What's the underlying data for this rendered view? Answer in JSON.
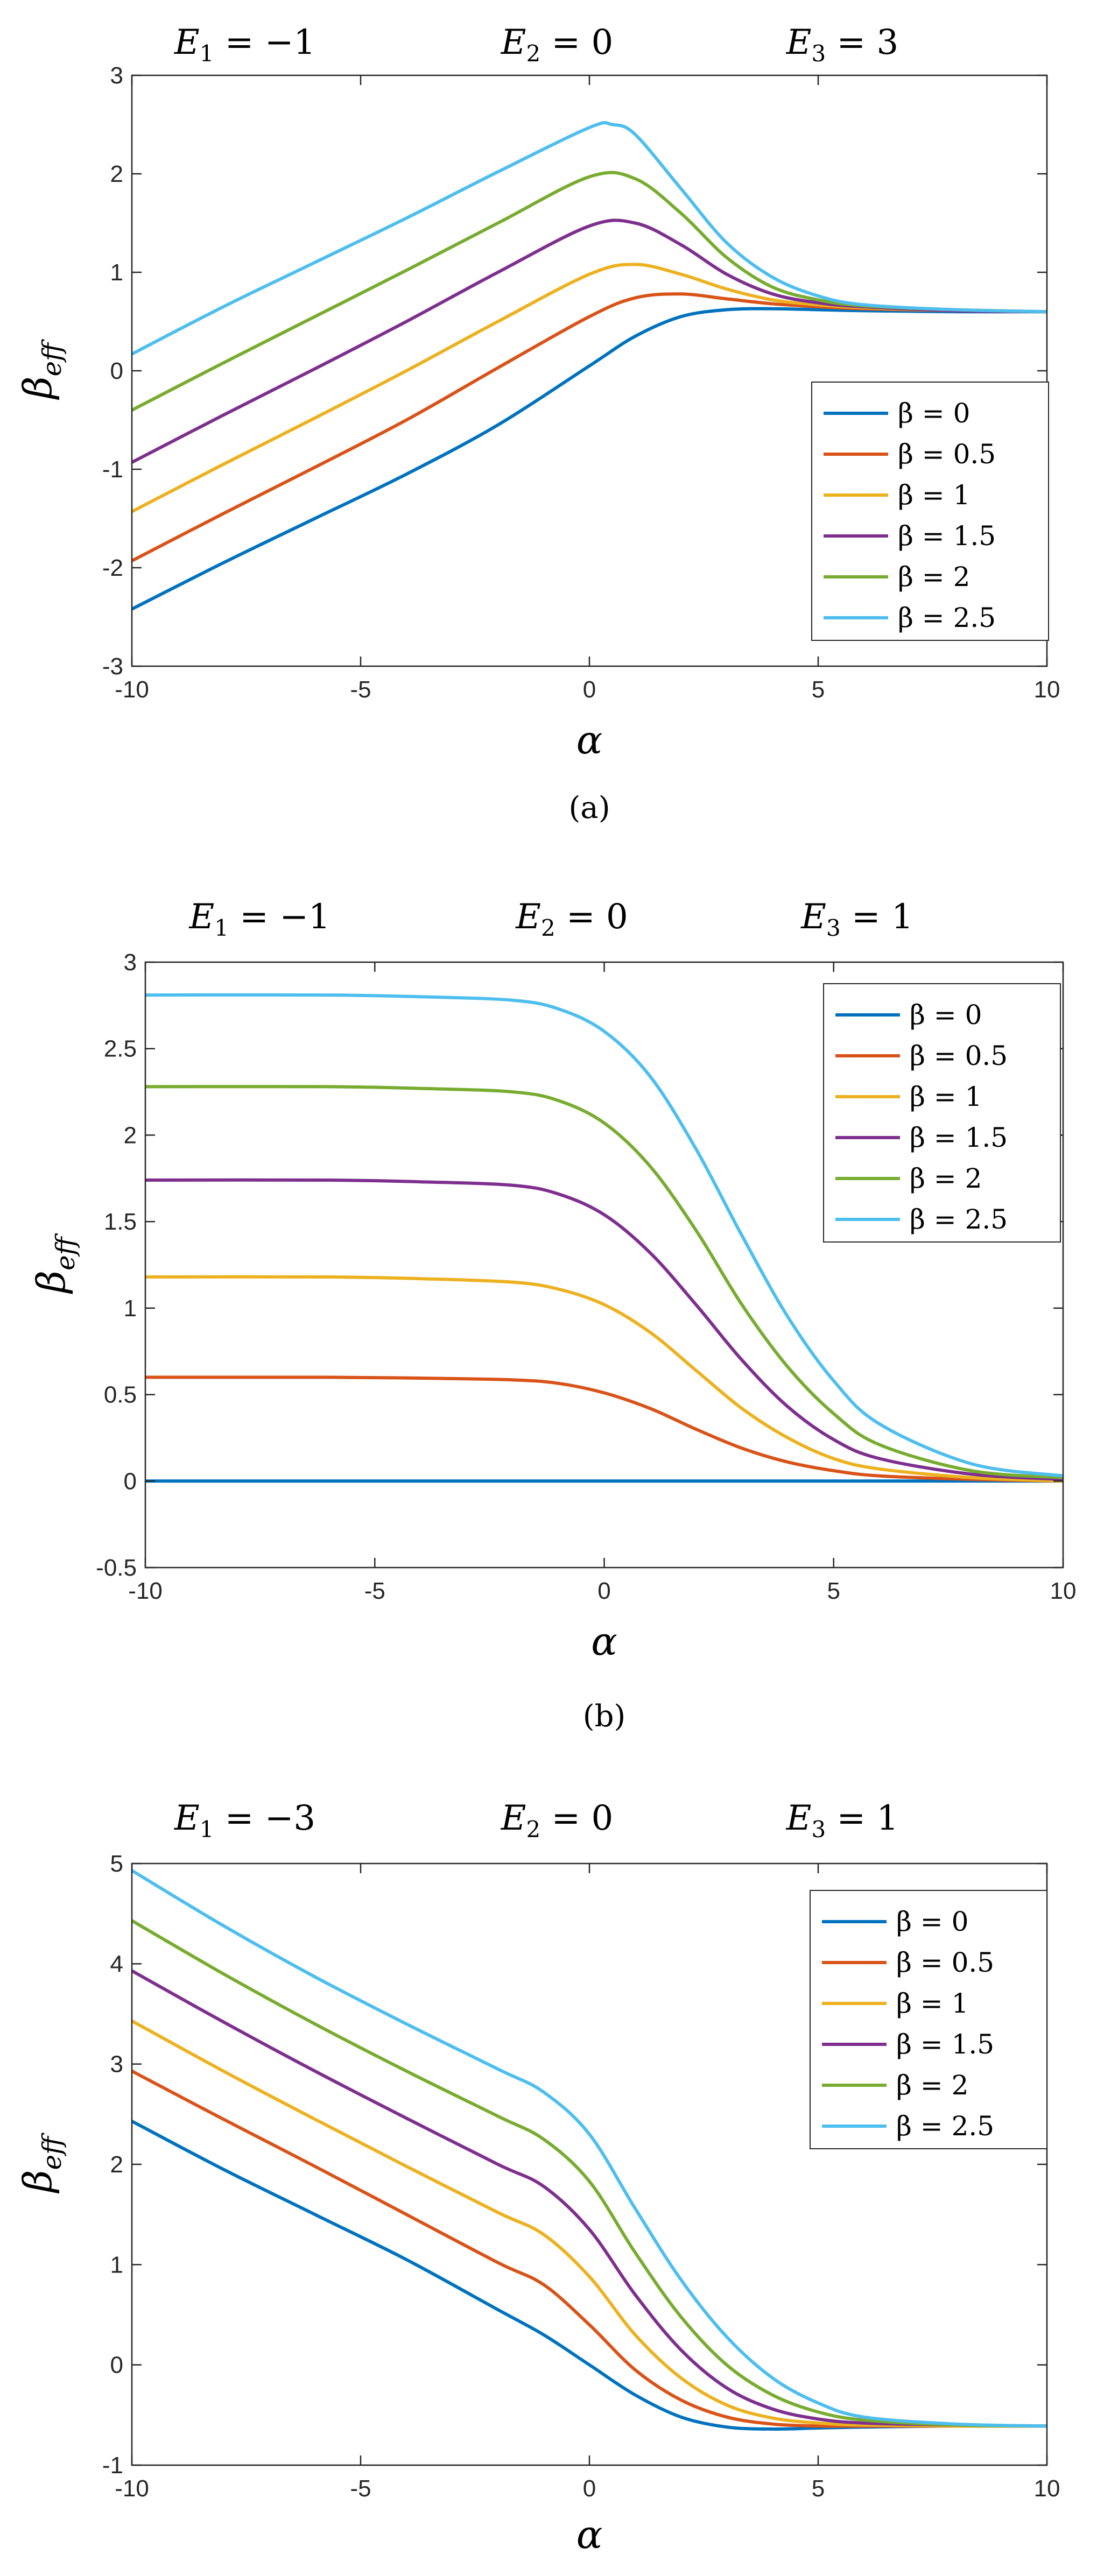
{
  "colors": {
    "series": [
      "#0072BD",
      "#D95319",
      "#EDB120",
      "#7E2F8E",
      "#77AC30",
      "#4DBEEE"
    ],
    "axis": "#262626",
    "legend_border": "#262626",
    "background": "#ffffff"
  },
  "chart_data": [
    {
      "type": "line",
      "panel_label": "(a)",
      "panel_letter": "a",
      "title_parts": {
        "e1_var": "E",
        "e1_sub": "1",
        "e1_eq": " = −1",
        "e2_var": "E",
        "e2_sub": "2",
        "e2_eq": " = 0",
        "e3_var": "E",
        "e3_sub": "3",
        "e3_eq": " = 3"
      },
      "title": "E1 = −1   E2 = 0   E3 = 3",
      "xlabel": "α",
      "ylabel_main": "β",
      "ylabel_sub": "eff",
      "xlim": [
        -10,
        10
      ],
      "ylim": [
        -3,
        3
      ],
      "xticks": [
        -10,
        -5,
        0,
        5,
        10
      ],
      "yticks": [
        -3,
        -2,
        -1,
        0,
        1,
        2,
        3
      ],
      "xtick_labels": [
        "-10",
        "-5",
        "0",
        "5",
        "10"
      ],
      "ytick_labels": [
        "-3",
        "-2",
        "-1",
        "0",
        "1",
        "2",
        "3"
      ],
      "legend_position": "lower-right",
      "grid": false,
      "series": [
        {
          "name": "β = 0",
          "x": [
            -10,
            -8,
            -6,
            -4,
            -2,
            0,
            1,
            2,
            3,
            4,
            5,
            6,
            8,
            10
          ],
          "y": [
            -2.42,
            -1.95,
            -1.5,
            -1.05,
            -0.55,
            0.05,
            0.35,
            0.55,
            0.62,
            0.63,
            0.62,
            0.61,
            0.6,
            0.6
          ]
        },
        {
          "name": "β = 0.5",
          "x": [
            -10,
            -8,
            -6,
            -4,
            -2,
            0,
            1,
            2,
            3,
            4,
            5,
            6,
            8,
            10
          ],
          "y": [
            -1.93,
            -1.45,
            -0.98,
            -0.5,
            0.03,
            0.55,
            0.74,
            0.78,
            0.73,
            0.68,
            0.65,
            0.63,
            0.61,
            0.6
          ]
        },
        {
          "name": "β = 1",
          "x": [
            -10,
            -8,
            -6,
            -4,
            -2,
            0,
            1,
            2,
            3,
            4,
            5,
            6,
            8,
            10
          ],
          "y": [
            -1.43,
            -0.95,
            -0.48,
            0.0,
            0.5,
            0.98,
            1.08,
            0.98,
            0.83,
            0.72,
            0.67,
            0.64,
            0.61,
            0.6
          ]
        },
        {
          "name": "β = 1.5",
          "x": [
            -10,
            -8,
            -6,
            -4,
            -2,
            0,
            1,
            2,
            3,
            4,
            5,
            6,
            8,
            10
          ],
          "y": [
            -0.93,
            -0.45,
            0.02,
            0.5,
            1.0,
            1.47,
            1.5,
            1.28,
            0.98,
            0.78,
            0.69,
            0.65,
            0.61,
            0.6
          ]
        },
        {
          "name": "β = 2",
          "x": [
            -10,
            -8,
            -6,
            -4,
            -2,
            0,
            1,
            2,
            3,
            4,
            5,
            6,
            8,
            10
          ],
          "y": [
            -0.4,
            0.08,
            0.55,
            1.02,
            1.5,
            1.97,
            1.95,
            1.6,
            1.15,
            0.85,
            0.72,
            0.66,
            0.62,
            0.6
          ]
        },
        {
          "name": "β = 2.5",
          "x": [
            -10,
            -8,
            -6,
            -4,
            -2,
            0,
            0.5,
            1,
            2,
            3,
            4,
            5,
            6,
            8,
            10
          ],
          "y": [
            0.17,
            0.65,
            1.1,
            1.55,
            2.02,
            2.47,
            2.5,
            2.4,
            1.85,
            1.3,
            0.95,
            0.76,
            0.67,
            0.62,
            0.6
          ]
        }
      ]
    },
    {
      "type": "line",
      "panel_label": "(b)",
      "panel_letter": "b",
      "title_parts": {
        "e1_var": "E",
        "e1_sub": "1",
        "e1_eq": " = −1",
        "e2_var": "E",
        "e2_sub": "2",
        "e2_eq": " = 0",
        "e3_var": "E",
        "e3_sub": "3",
        "e3_eq": " = 1"
      },
      "title": "E1 = −1   E2 = 0   E3 = 1",
      "xlabel": "α",
      "ylabel_main": "β",
      "ylabel_sub": "eff",
      "xlim": [
        -10,
        10
      ],
      "ylim": [
        -0.5,
        3
      ],
      "xticks": [
        -10,
        -5,
        0,
        5,
        10
      ],
      "yticks": [
        -0.5,
        0,
        0.5,
        1,
        1.5,
        2,
        2.5,
        3
      ],
      "xtick_labels": [
        "-10",
        "-5",
        "0",
        "5",
        "10"
      ],
      "ytick_labels": [
        "-0.5",
        "0",
        "0.5",
        "1",
        "1.5",
        "2",
        "2.5",
        "3"
      ],
      "legend_position": "top-right",
      "grid": false,
      "series": [
        {
          "name": "β = 0",
          "x": [
            -10,
            10
          ],
          "y": [
            0,
            0
          ]
        },
        {
          "name": "β = 0.5",
          "x": [
            -10,
            -6,
            -4,
            -2,
            -1,
            0,
            1,
            2,
            3,
            4,
            5,
            6,
            8,
            10
          ],
          "y": [
            0.6,
            0.6,
            0.595,
            0.585,
            0.565,
            0.51,
            0.42,
            0.3,
            0.19,
            0.11,
            0.06,
            0.03,
            0.01,
            0.0
          ]
        },
        {
          "name": "β = 1",
          "x": [
            -10,
            -6,
            -4,
            -2,
            -1,
            0,
            1,
            2,
            3,
            4,
            5,
            6,
            8,
            10
          ],
          "y": [
            1.18,
            1.18,
            1.17,
            1.15,
            1.11,
            1.02,
            0.86,
            0.64,
            0.42,
            0.25,
            0.13,
            0.07,
            0.02,
            0.0
          ]
        },
        {
          "name": "β = 1.5",
          "x": [
            -10,
            -6,
            -4,
            -2,
            -1,
            0,
            1,
            2,
            3,
            4,
            5,
            6,
            8,
            10
          ],
          "y": [
            1.74,
            1.74,
            1.73,
            1.71,
            1.66,
            1.54,
            1.32,
            1.02,
            0.7,
            0.43,
            0.24,
            0.13,
            0.04,
            0.01
          ]
        },
        {
          "name": "β = 2",
          "x": [
            -10,
            -6,
            -4,
            -2,
            -1,
            0,
            1,
            2,
            3,
            4,
            5,
            6,
            8,
            10
          ],
          "y": [
            2.28,
            2.28,
            2.27,
            2.25,
            2.2,
            2.07,
            1.82,
            1.45,
            1.02,
            0.66,
            0.39,
            0.21,
            0.06,
            0.02
          ]
        },
        {
          "name": "β = 2.5",
          "x": [
            -10,
            -6,
            -4,
            -2,
            -1,
            0,
            1,
            2,
            3,
            4,
            5,
            6,
            8,
            10
          ],
          "y": [
            2.81,
            2.81,
            2.8,
            2.78,
            2.73,
            2.6,
            2.34,
            1.92,
            1.42,
            0.95,
            0.58,
            0.33,
            0.1,
            0.03
          ]
        }
      ]
    },
    {
      "type": "line",
      "panel_label": "(c)",
      "panel_letter": "c",
      "title_parts": {
        "e1_var": "E",
        "e1_sub": "1",
        "e1_eq": " = −3",
        "e2_var": "E",
        "e2_sub": "2",
        "e2_eq": " = 0",
        "e3_var": "E",
        "e3_sub": "3",
        "e3_eq": " = 1"
      },
      "title": "E1 = −3   E2 = 0   E3 = 1",
      "xlabel": "α",
      "ylabel_main": "β",
      "ylabel_sub": "eff",
      "xlim": [
        -10,
        10
      ],
      "ylim": [
        -1,
        5
      ],
      "xticks": [
        -10,
        -5,
        0,
        5,
        10
      ],
      "yticks": [
        -1,
        0,
        1,
        2,
        3,
        4,
        5
      ],
      "xtick_labels": [
        "-10",
        "-5",
        "0",
        "5",
        "10"
      ],
      "ytick_labels": [
        "-1",
        "0",
        "1",
        "2",
        "3",
        "4",
        "5"
      ],
      "legend_position": "top-right",
      "grid": false,
      "series": [
        {
          "name": "β = 0",
          "x": [
            -10,
            -8,
            -6,
            -4,
            -2,
            -1,
            0,
            1,
            2,
            3,
            4,
            5,
            6,
            8,
            10
          ],
          "y": [
            2.43,
            1.95,
            1.5,
            1.05,
            0.55,
            0.3,
            0.0,
            -0.3,
            -0.52,
            -0.62,
            -0.64,
            -0.63,
            -0.62,
            -0.61,
            -0.61
          ]
        },
        {
          "name": "β = 0.5",
          "x": [
            -10,
            -8,
            -6,
            -4,
            -2,
            -1,
            0,
            1,
            2,
            3,
            4,
            5,
            6,
            8,
            10
          ],
          "y": [
            2.93,
            2.45,
            1.98,
            1.5,
            1.02,
            0.8,
            0.4,
            -0.05,
            -0.35,
            -0.52,
            -0.59,
            -0.61,
            -0.61,
            -0.61,
            -0.61
          ]
        },
        {
          "name": "β = 1",
          "x": [
            -10,
            -8,
            -6,
            -4,
            -2,
            -1,
            0,
            1,
            2,
            3,
            4,
            5,
            6,
            8,
            10
          ],
          "y": [
            3.43,
            2.93,
            2.45,
            1.98,
            1.52,
            1.3,
            0.88,
            0.3,
            -0.13,
            -0.4,
            -0.53,
            -0.58,
            -0.6,
            -0.61,
            -0.61
          ]
        },
        {
          "name": "β = 1.5",
          "x": [
            -10,
            -8,
            -6,
            -4,
            -2,
            -1,
            0,
            1,
            2,
            3,
            4,
            5,
            6,
            8,
            10
          ],
          "y": [
            3.93,
            3.42,
            2.93,
            2.46,
            2.0,
            1.78,
            1.35,
            0.7,
            0.15,
            -0.23,
            -0.44,
            -0.54,
            -0.58,
            -0.6,
            -0.61
          ]
        },
        {
          "name": "β = 2",
          "x": [
            -10,
            -8,
            -6,
            -4,
            -2,
            -1,
            0,
            1,
            2,
            3,
            4,
            5,
            6,
            8,
            10
          ],
          "y": [
            4.43,
            3.9,
            3.4,
            2.93,
            2.48,
            2.25,
            1.83,
            1.12,
            0.48,
            0.0,
            -0.3,
            -0.47,
            -0.55,
            -0.6,
            -0.61
          ]
        },
        {
          "name": "β = 2.5",
          "x": [
            -10,
            -8,
            -6,
            -4,
            -2,
            -1,
            0,
            1,
            2,
            3,
            4,
            5,
            6,
            8,
            10
          ],
          "y": [
            4.93,
            4.38,
            3.87,
            3.4,
            2.95,
            2.72,
            2.3,
            1.56,
            0.85,
            0.28,
            -0.13,
            -0.38,
            -0.52,
            -0.59,
            -0.61
          ]
        }
      ]
    }
  ]
}
